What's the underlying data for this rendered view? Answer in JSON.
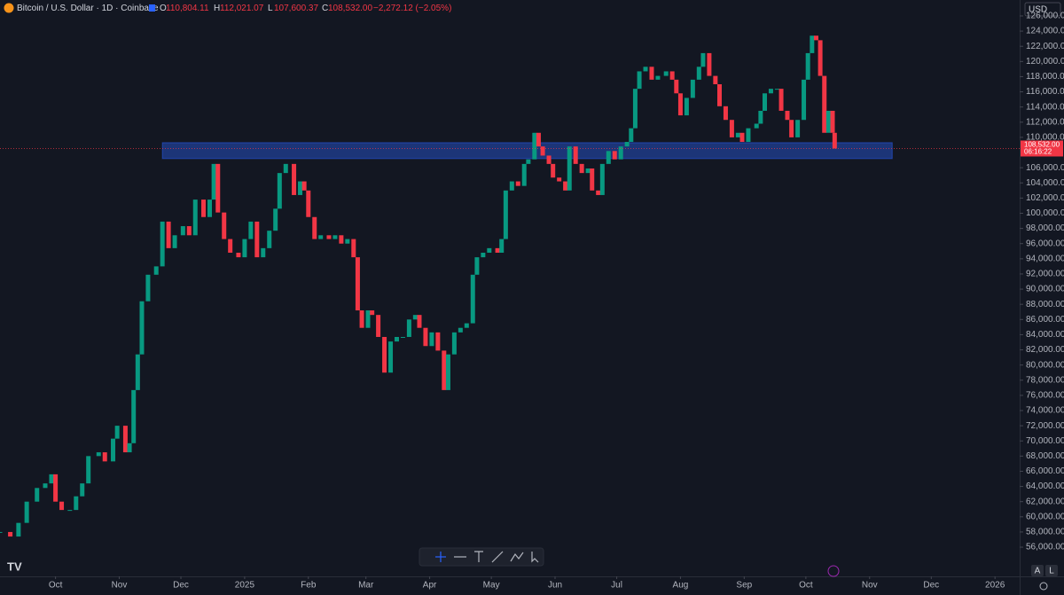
{
  "chart_data": {
    "type": "candlestick",
    "title": "Bitcoin / U.S. Dollar · 1D · Coinbase",
    "ohlc_labels": [
      "O",
      "H",
      "L",
      "C"
    ],
    "ohlc_values": [
      "110,804.11",
      "112,021.07",
      "107,600.37",
      "108,532.00"
    ],
    "change": "−2,272.12 (−2.05%)",
    "currency": "USD",
    "last_price": {
      "value": 108532,
      "label": "108,532.00"
    },
    "countdown": "06:16:22",
    "up_color": "#089981",
    "down_color": "#f23645",
    "grid": false,
    "zone": {
      "x": [
        52,
        407
      ],
      "y": [
        107200,
        109300
      ],
      "color": "#1c3578"
    },
    "xlim": [
      -27,
      469
    ],
    "ylim": [
      52150,
      128100
    ],
    "xticks": [
      {
        "value": 0,
        "label": "Oct"
      },
      {
        "value": 31,
        "label": "Nov"
      },
      {
        "value": 61,
        "label": "Dec"
      },
      {
        "value": 92,
        "label": "2025"
      },
      {
        "value": 123,
        "label": "Feb"
      },
      {
        "value": 151,
        "label": "Mar"
      },
      {
        "value": 182,
        "label": "Apr"
      },
      {
        "value": 212,
        "label": "May"
      },
      {
        "value": 243,
        "label": "Jun"
      },
      {
        "value": 273,
        "label": "Jul"
      },
      {
        "value": 304,
        "label": "Aug"
      },
      {
        "value": 335,
        "label": "Sep"
      },
      {
        "value": 365,
        "label": "Oct"
      },
      {
        "value": 396,
        "label": "Nov"
      },
      {
        "value": 426,
        "label": "Dec"
      },
      {
        "value": 457,
        "label": "2026"
      }
    ],
    "yticks": [
      {
        "value": 56000,
        "label": "56,000.00"
      },
      {
        "value": 58000,
        "label": "58,000.00"
      },
      {
        "value": 60000,
        "label": "60,000.00"
      },
      {
        "value": 62000,
        "label": "62,000.00"
      },
      {
        "value": 64000,
        "label": "64,000.00"
      },
      {
        "value": 66000,
        "label": "66,000.00"
      },
      {
        "value": 68000,
        "label": "68,000.00"
      },
      {
        "value": 70000,
        "label": "70,000.00"
      },
      {
        "value": 72000,
        "label": "72,000.00"
      },
      {
        "value": 74000,
        "label": "74,000.00"
      },
      {
        "value": 76000,
        "label": "76,000.00"
      },
      {
        "value": 78000,
        "label": "78,000.00"
      },
      {
        "value": 80000,
        "label": "80,000.00"
      },
      {
        "value": 82000,
        "label": "82,000.00"
      },
      {
        "value": 84000,
        "label": "84,000.00"
      },
      {
        "value": 86000,
        "label": "86,000.00"
      },
      {
        "value": 88000,
        "label": "88,000.00"
      },
      {
        "value": 90000,
        "label": "90,000.00"
      },
      {
        "value": 92000,
        "label": "92,000.00"
      },
      {
        "value": 94000,
        "label": "94,000.00"
      },
      {
        "value": 96000,
        "label": "96,000.00"
      },
      {
        "value": 98000,
        "label": "98,000.00"
      },
      {
        "value": 100000,
        "label": "100,000.00"
      },
      {
        "value": 102000,
        "label": "102,000.00"
      },
      {
        "value": 104000,
        "label": "104,000.00"
      },
      {
        "value": 106000,
        "label": "106,000.00"
      },
      {
        "value": 110000,
        "label": "110,000.00"
      },
      {
        "value": 112000,
        "label": "112,000.00"
      },
      {
        "value": 114000,
        "label": "114,000.00"
      },
      {
        "value": 116000,
        "label": "116,000.00"
      },
      {
        "value": 118000,
        "label": "118,000.00"
      },
      {
        "value": 120000,
        "label": "120,000.00"
      },
      {
        "value": 122000,
        "label": "122,000.00"
      },
      {
        "value": 124000,
        "label": "124,000.00"
      },
      {
        "value": 126000,
        "label": "126,000.00"
      }
    ],
    "x": [
      -27,
      -22,
      -18,
      -14,
      -9,
      -5,
      -2,
      0,
      3,
      7,
      10,
      13,
      16,
      21,
      24,
      28,
      30,
      34,
      36,
      38,
      40,
      42,
      45,
      49,
      52,
      55,
      58,
      62,
      65,
      68,
      72,
      75,
      77,
      79,
      82,
      85,
      89,
      92,
      95,
      98,
      101,
      104,
      107,
      109,
      112,
      116,
      119,
      121,
      123,
      126,
      129,
      133,
      136,
      139,
      142,
      145,
      147,
      149,
      152,
      154,
      157,
      160,
      163,
      166,
      169,
      172,
      175,
      177,
      180,
      183,
      186,
      189,
      191,
      194,
      197,
      200,
      203,
      205,
      208,
      211,
      215,
      217,
      219,
      222,
      225,
      228,
      230,
      233,
      235,
      237,
      240,
      242,
      245,
      248,
      250,
      253,
      256,
      259,
      261,
      264,
      266,
      269,
      272,
      275,
      278,
      280,
      282,
      284,
      287,
      290,
      293,
      297,
      300,
      302,
      304,
      307,
      310,
      313,
      315,
      318,
      321,
      323,
      326,
      329,
      332,
      334,
      337,
      341,
      343,
      345,
      348,
      351,
      353,
      356,
      358,
      361,
      364,
      366,
      368,
      370,
      372,
      374,
      376,
      378,
      379
    ],
    "close": [
      58000,
      57400,
      59200,
      62000,
      63800,
      64400,
      65600,
      62000,
      60900,
      60900,
      62700,
      64400,
      68000,
      68500,
      67300,
      70300,
      72000,
      68500,
      69700,
      76700,
      81400,
      88400,
      91900,
      93000,
      98900,
      95400,
      97100,
      98300,
      97100,
      101800,
      99500,
      101800,
      106500,
      100100,
      96600,
      94800,
      94200,
      96600,
      98900,
      94200,
      95400,
      97700,
      100600,
      105300,
      106500,
      102400,
      104200,
      103000,
      99500,
      96600,
      97100,
      96600,
      97100,
      96000,
      96600,
      94200,
      87200,
      84900,
      87200,
      86600,
      83700,
      79000,
      83100,
      83700,
      83700,
      86000,
      86600,
      84900,
      82500,
      84300,
      81900,
      76700,
      81400,
      84300,
      84900,
      85500,
      91900,
      94200,
      94800,
      95400,
      94800,
      96600,
      103000,
      104200,
      103600,
      106500,
      107100,
      110600,
      108800,
      107600,
      106500,
      104700,
      104200,
      103000,
      108800,
      106500,
      105300,
      105900,
      103000,
      102400,
      106500,
      108200,
      107100,
      108800,
      109400,
      111200,
      116400,
      118700,
      119300,
      117600,
      118100,
      118700,
      117600,
      115800,
      112900,
      115200,
      117600,
      119300,
      121100,
      118100,
      117000,
      114100,
      112300,
      110000,
      110600,
      109400,
      111200,
      111800,
      113500,
      115800,
      116400,
      116400,
      113500,
      112300,
      110000,
      112300,
      117600,
      121100,
      123400,
      122800,
      118100,
      110600,
      113500,
      110600,
      108532
    ]
  }
}
